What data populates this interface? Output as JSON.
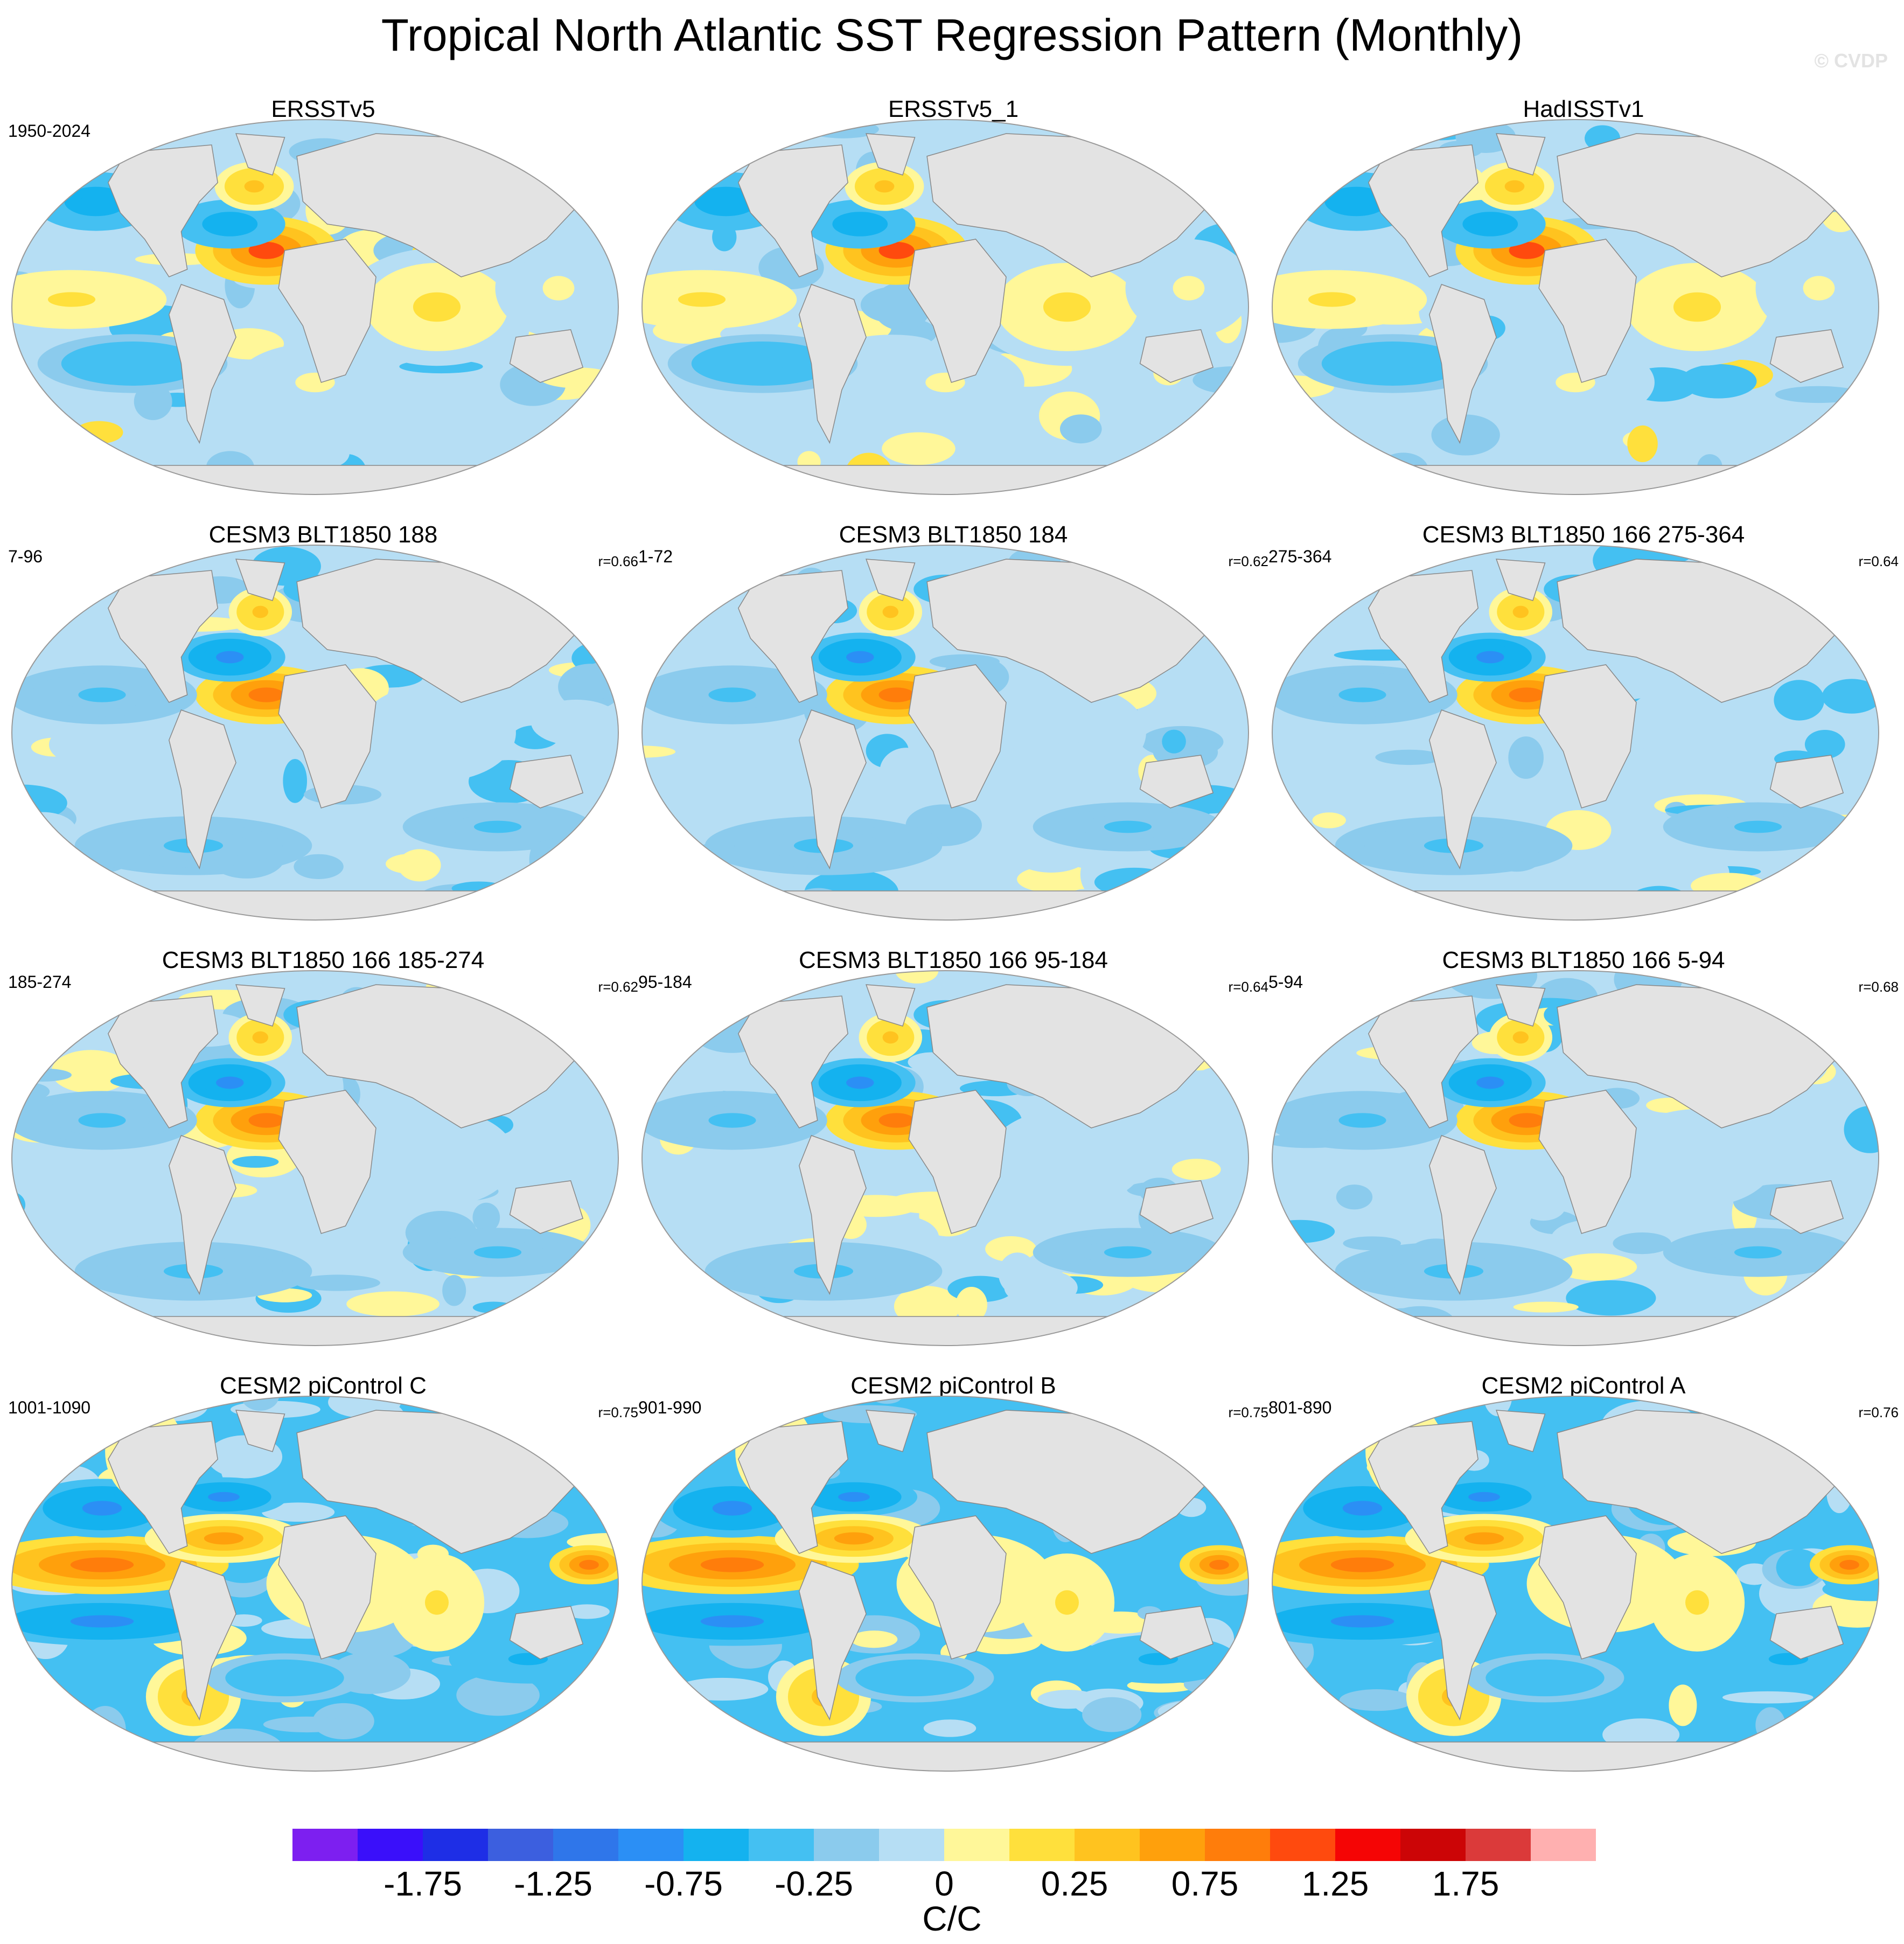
{
  "title": "Tropical North Atlantic SST Regression Pattern (Monthly)",
  "watermark": "© CVDP",
  "panels": [
    {
      "title": "ERSSTv5",
      "years": "1950-2024",
      "corr": "",
      "style": "obs",
      "seed": 1
    },
    {
      "title": "ERSSTv5_1",
      "years": "",
      "corr": "",
      "style": "obs",
      "seed": 2
    },
    {
      "title": "HadISSTv1",
      "years": "",
      "corr": "",
      "style": "obs",
      "seed": 3
    },
    {
      "title": "CESM3 BLT1850 188",
      "years": "7-96",
      "corr": "r=0.66",
      "style": "cesm3",
      "seed": 4
    },
    {
      "title": "CESM3 BLT1850 184",
      "years": "1-72",
      "corr": "r=0.62",
      "style": "cesm3",
      "seed": 5
    },
    {
      "title": "CESM3 BLT1850 166 275-364",
      "years": "275-364",
      "corr": "r=0.64",
      "style": "cesm3",
      "seed": 6
    },
    {
      "title": "CESM3 BLT1850 166 185-274",
      "years": "185-274",
      "corr": "r=0.62",
      "style": "cesm3",
      "seed": 7
    },
    {
      "title": "CESM3 BLT1850 166 95-184",
      "years": "95-184",
      "corr": "r=0.64",
      "style": "cesm3",
      "seed": 8
    },
    {
      "title": "CESM3 BLT1850 166 5-94",
      "years": "5-94",
      "corr": "r=0.68",
      "style": "cesm3",
      "seed": 9
    },
    {
      "title": "CESM2 piControl C",
      "years": "1001-1090",
      "corr": "r=0.75",
      "style": "cesm2",
      "seed": 10
    },
    {
      "title": "CESM2 piControl B",
      "years": "901-990",
      "corr": "r=0.75",
      "style": "cesm2",
      "seed": 11
    },
    {
      "title": "CESM2 piControl A",
      "years": "801-890",
      "corr": "r=0.76",
      "style": "cesm2",
      "seed": 12
    }
  ],
  "colorbar": {
    "colors": [
      "#7d1ff0",
      "#3a0ffa",
      "#1e2ee6",
      "#3c5fdf",
      "#2f76ea",
      "#2b8ff5",
      "#14b2ef",
      "#44c0f2",
      "#8bcbed",
      "#b6def4",
      "#fff799",
      "#ffe03c",
      "#ffc31f",
      "#ffa00c",
      "#ff7d0b",
      "#ff4a0e",
      "#f50505",
      "#cc0506",
      "#db3a3a",
      "#ffb0b0"
    ],
    "labels": [
      "-1.75",
      "-1.25",
      "-0.75",
      "-0.25",
      "0",
      "0.25",
      "0.75",
      "1.25",
      "1.75"
    ],
    "units": "C/C"
  },
  "land_color": "#e3e3e3"
}
